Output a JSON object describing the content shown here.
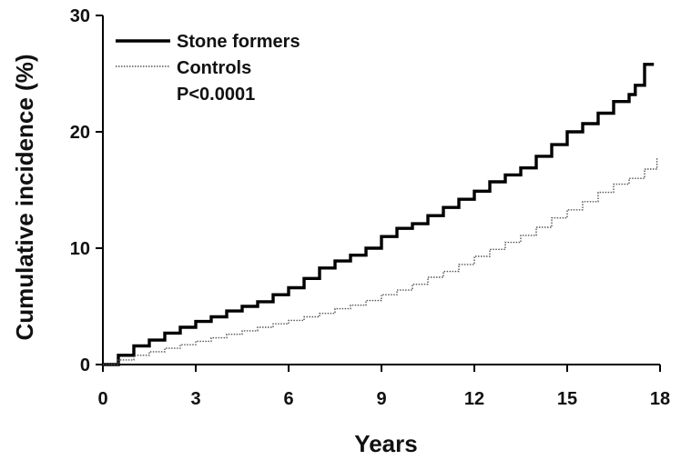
{
  "chart_data": {
    "type": "line",
    "xlabel": "Years",
    "ylabel": "Cumulative incidence (%)",
    "xlim": [
      0,
      18
    ],
    "ylim": [
      0,
      30
    ],
    "x_ticks": [
      "0",
      "3",
      "6",
      "9",
      "12",
      "15",
      "18"
    ],
    "y_ticks": [
      "0",
      "10",
      "20",
      "30"
    ],
    "grid": false,
    "legend_position": "top-left",
    "annotation": "P<0.0001",
    "series": [
      {
        "name": "Stone formers",
        "style": "solid-thick",
        "color": "#000000",
        "x": [
          0,
          0.5,
          1,
          1.5,
          2,
          2.5,
          3,
          3.5,
          4,
          4.5,
          5,
          5.5,
          6,
          6.5,
          7,
          7.5,
          8,
          8.5,
          9,
          9.5,
          10,
          10.5,
          11,
          11.5,
          12,
          12.5,
          13,
          13.5,
          14,
          14.5,
          15,
          15.5,
          16,
          16.5,
          17,
          17.2,
          17.5,
          17.8
        ],
        "values": [
          0,
          0.8,
          1.6,
          2.1,
          2.7,
          3.2,
          3.7,
          4.1,
          4.6,
          5.0,
          5.4,
          6.0,
          6.6,
          7.4,
          8.3,
          8.9,
          9.4,
          10.0,
          11.0,
          11.7,
          12.1,
          12.8,
          13.5,
          14.2,
          14.9,
          15.7,
          16.3,
          16.9,
          17.9,
          18.9,
          20.0,
          20.7,
          21.6,
          22.6,
          23.2,
          24.0,
          25.8,
          25.8
        ]
      },
      {
        "name": "Controls",
        "style": "dotted-thin",
        "color": "#555555",
        "x": [
          0,
          0.5,
          1,
          1.5,
          2,
          2.5,
          3,
          3.5,
          4,
          4.5,
          5,
          5.5,
          6,
          6.5,
          7,
          7.5,
          8,
          8.5,
          9,
          9.5,
          10,
          10.5,
          11,
          11.5,
          12,
          12.5,
          13,
          13.5,
          14,
          14.5,
          15,
          15.5,
          16,
          16.5,
          17,
          17.5,
          17.9
        ],
        "values": [
          0,
          0.4,
          0.8,
          1.1,
          1.4,
          1.7,
          2.0,
          2.3,
          2.6,
          2.9,
          3.2,
          3.5,
          3.8,
          4.1,
          4.4,
          4.8,
          5.1,
          5.5,
          6.0,
          6.4,
          6.9,
          7.5,
          8.0,
          8.6,
          9.3,
          9.9,
          10.5,
          11.1,
          11.8,
          12.6,
          13.3,
          14.0,
          14.8,
          15.5,
          16.0,
          16.8,
          17.8
        ]
      }
    ]
  }
}
